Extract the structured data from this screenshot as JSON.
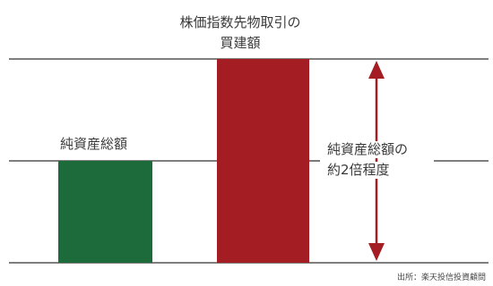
{
  "labels": {
    "futures_title_line1": "株価指数先物取引の",
    "futures_title_line2": "買建額",
    "net_assets_label": "純資産総額",
    "ratio_line1": "純資産総額の",
    "ratio_line2": "約2倍程度",
    "source": "出所：楽天投信投資顧問"
  },
  "colors": {
    "net_assets_bar": "#1d6a3a",
    "futures_bar": "#a31d22",
    "arrow": "#a31d22",
    "guide_lines": "#333333"
  },
  "chart_data": {
    "type": "bar",
    "categories": [
      "純資産総額",
      "株価指数先物取引の買建額"
    ],
    "values": [
      1,
      2
    ]
  }
}
